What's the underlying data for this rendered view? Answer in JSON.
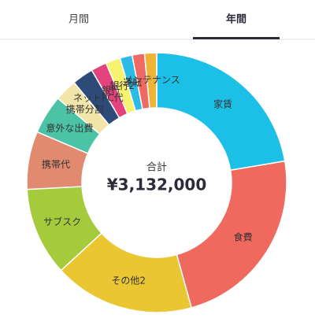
{
  "tabs": [
    "月間",
    "年間"
  ],
  "active_tab": 1,
  "chart_data": {
    "type": "donut",
    "center_label": "合計",
    "center_value": "¥3,132,000",
    "categories": [
      "家賃",
      "食費",
      "その他2",
      "サブスク",
      "携帯代",
      "意外な出費",
      "携帯分割",
      "ネットPC代",
      "銀行",
      "銀行2",
      "運転",
      null,
      "メンテナンス"
    ],
    "values": [
      700000,
      731000,
      548000,
      344000,
      226000,
      152000,
      87000,
      83000,
      61000,
      57000,
      48000,
      48000,
      47000
    ],
    "colors": [
      "#1cbfe6",
      "#f0695f",
      "#e9c632",
      "#a5cb3c",
      "#e28a70",
      "#4cc3a6",
      "#f2e5aa",
      "#2e4a78",
      "#e4427d",
      "#f7f36e",
      "#2bbbe5",
      "#ef6a62",
      "#edb437"
    ]
  }
}
